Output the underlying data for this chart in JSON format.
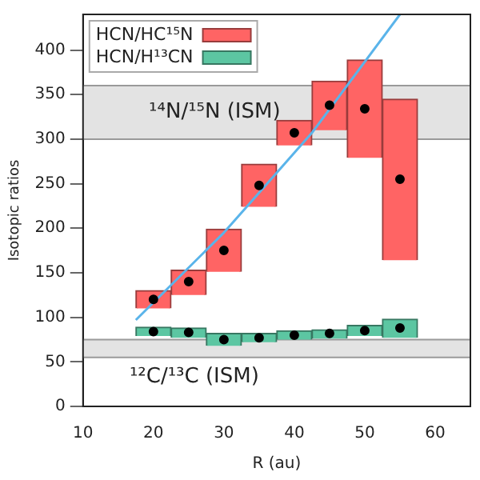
{
  "chart_data": {
    "type": "bar",
    "xlabel": "R (au)",
    "ylabel": "Isotopic ratios",
    "x": [
      20,
      25,
      30,
      35,
      40,
      45,
      50,
      55
    ],
    "xlim": [
      10,
      65
    ],
    "xticks": [
      10,
      20,
      30,
      40,
      50,
      60
    ],
    "ylim": [
      0,
      440
    ],
    "yticks": [
      0,
      50,
      100,
      150,
      200,
      250,
      300,
      350,
      400
    ],
    "legend": "top left",
    "series": [
      {
        "name": "HCN/HC¹⁵N",
        "color": "#ff6464",
        "base": [
          110,
          125,
          151,
          224,
          293,
          310,
          279,
          164
        ],
        "values": [
          20,
          28,
          48,
          48,
          28,
          55,
          110,
          181
        ]
      },
      {
        "name": "HCN/H¹³CN",
        "color": "#5cc6a2",
        "base": [
          79,
          77,
          68,
          72,
          75,
          76,
          79,
          77
        ],
        "values": [
          10,
          11,
          14,
          10,
          10,
          10,
          12,
          21
        ]
      },
      {
        "type": "scatter",
        "color": "#000000",
        "marker": "circle",
        "values": [
          120,
          140,
          175,
          248,
          307,
          338,
          334,
          255
        ]
      },
      {
        "type": "scatter",
        "color": "#000000",
        "marker": "circle",
        "values": [
          84,
          83,
          75,
          77,
          80,
          82,
          85,
          88
        ]
      },
      {
        "type": "line",
        "color": "#5ab4ea",
        "marker": "none",
        "line_style": "solid",
        "x": [
          17.5,
          30,
          42.5,
          55
        ],
        "values": [
          97,
          195,
          307,
          440
        ]
      }
    ],
    "bands": [
      {
        "axis": "y",
        "from": 300,
        "to": 360,
        "label": "¹⁴N/¹⁵N (ISM)",
        "color": "#e3e3e3"
      },
      {
        "axis": "y",
        "from": 55,
        "to": 75,
        "label": "¹²C/¹³C (ISM)",
        "color": "#e3e3e3"
      }
    ]
  }
}
